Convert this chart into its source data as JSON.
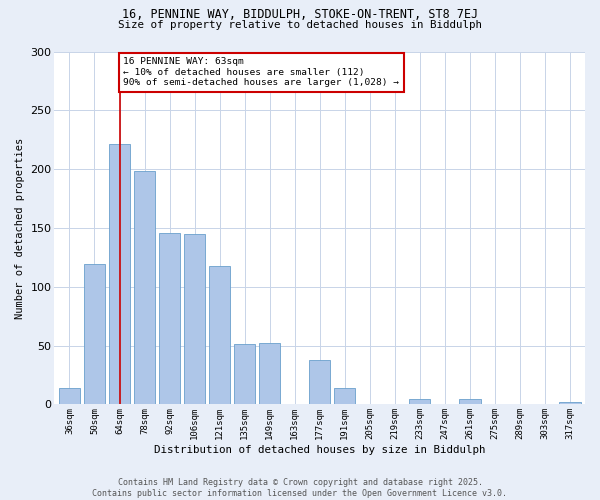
{
  "title_line1": "16, PENNINE WAY, BIDDULPH, STOKE-ON-TRENT, ST8 7EJ",
  "title_line2": "Size of property relative to detached houses in Biddulph",
  "xlabel": "Distribution of detached houses by size in Biddulph",
  "ylabel": "Number of detached properties",
  "bar_labels": [
    "36sqm",
    "50sqm",
    "64sqm",
    "78sqm",
    "92sqm",
    "106sqm",
    "121sqm",
    "135sqm",
    "149sqm",
    "163sqm",
    "177sqm",
    "191sqm",
    "205sqm",
    "219sqm",
    "233sqm",
    "247sqm",
    "261sqm",
    "275sqm",
    "289sqm",
    "303sqm",
    "317sqm"
  ],
  "bar_values": [
    14,
    119,
    221,
    198,
    146,
    145,
    118,
    51,
    52,
    0,
    38,
    14,
    0,
    0,
    5,
    0,
    5,
    0,
    0,
    0,
    2
  ],
  "bar_color": "#aec6e8",
  "bar_edge_color": "#6aa0cc",
  "highlight_bar_index": 2,
  "highlight_color": "#cc0000",
  "annotation_text": "16 PENNINE WAY: 63sqm\n← 10% of detached houses are smaller (112)\n90% of semi-detached houses are larger (1,028) →",
  "annotation_box_color": "#ffffff",
  "annotation_box_edge_color": "#cc0000",
  "ylim": [
    0,
    300
  ],
  "yticks": [
    0,
    50,
    100,
    150,
    200,
    250,
    300
  ],
  "footnote": "Contains HM Land Registry data © Crown copyright and database right 2025.\nContains public sector information licensed under the Open Government Licence v3.0.",
  "bg_color": "#e8eef8",
  "plot_bg_color": "#ffffff",
  "grid_color": "#c8d4e8"
}
